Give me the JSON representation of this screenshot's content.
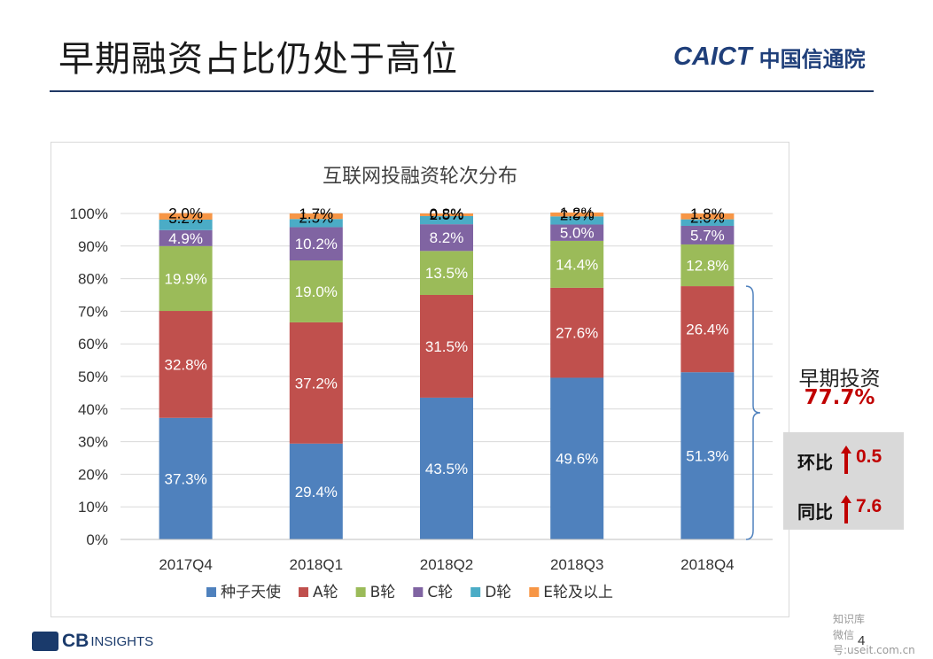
{
  "page": {
    "title": "早期融资占比仍处于高位",
    "logo_en": "CAICT",
    "logo_cn": "中国信通院",
    "page_number": "4",
    "source_logo_primary": "CB",
    "source_logo_secondary": "INSIGHTS",
    "watermark_line1": "知识库",
    "watermark_line2": "微信号:useit.com.cn"
  },
  "summary": {
    "label": "早期投资",
    "value": "77.7%",
    "stats": [
      {
        "label": "环比",
        "value": "0.5",
        "direction": "up"
      },
      {
        "label": "同比",
        "value": "7.6",
        "direction": "up"
      }
    ]
  },
  "colors": {
    "seed_angel": "#4f81bd",
    "a_round": "#c0504d",
    "b_round": "#9bbb59",
    "c_round": "#8064a2",
    "d_round": "#4bacc6",
    "e_plus": "#f79646",
    "accent_red": "#c00000",
    "title_rule": "#1f3864"
  },
  "chart_data": {
    "type": "bar",
    "stacked": true,
    "title": "互联网投融资轮次分布",
    "categories": [
      "2017Q4",
      "2018Q1",
      "2018Q2",
      "2018Q3",
      "2018Q4"
    ],
    "ylim": [
      0,
      100
    ],
    "yticks": [
      "0%",
      "10%",
      "20%",
      "30%",
      "40%",
      "50%",
      "60%",
      "70%",
      "80%",
      "90%",
      "100%"
    ],
    "grid": true,
    "legend_position": "bottom",
    "series": [
      {
        "name": "种子天使",
        "color": "#4f81bd",
        "values": [
          37.3,
          29.4,
          43.5,
          49.6,
          51.3
        ],
        "labels": [
          "37.3%",
          "29.4%",
          "43.5%",
          "49.6%",
          "51.3%"
        ]
      },
      {
        "name": "A轮",
        "color": "#c0504d",
        "values": [
          32.8,
          37.2,
          31.5,
          27.6,
          26.4
        ],
        "labels": [
          "32.8%",
          "37.2%",
          "31.5%",
          "27.6%",
          "26.4%"
        ]
      },
      {
        "name": "B轮",
        "color": "#9bbb59",
        "values": [
          19.9,
          19.0,
          13.5,
          14.4,
          12.8
        ],
        "labels": [
          "19.9%",
          "19.0%",
          "13.5%",
          "14.4%",
          "12.8%"
        ]
      },
      {
        "name": "C轮",
        "color": "#8064a2",
        "values": [
          4.9,
          10.2,
          8.2,
          5.0,
          5.7
        ],
        "labels": [
          "4.9%",
          "10.2%",
          "8.2%",
          "5.0%",
          "5.7%"
        ]
      },
      {
        "name": "D轮",
        "color": "#4bacc6",
        "values": [
          3.2,
          2.5,
          2.5,
          2.5,
          2.0
        ],
        "labels": [
          "3.2%",
          "2.5%",
          "2.5%",
          "2.5%",
          "2.0%"
        ]
      },
      {
        "name": "E轮及以上",
        "color": "#f79646",
        "values": [
          2.0,
          1.7,
          0.8,
          1.2,
          1.8
        ],
        "labels": [
          "2.0%",
          "1.7%",
          "0.8%",
          "1.2%",
          "1.8%"
        ]
      }
    ]
  }
}
